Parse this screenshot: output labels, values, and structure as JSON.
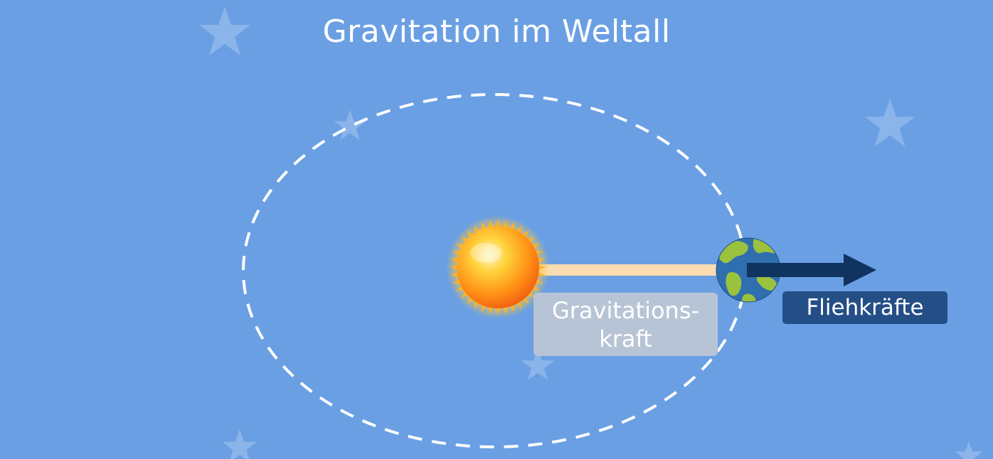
{
  "title": "Gravitation im Weltall",
  "labels": {
    "gravitation_line1": "Gravitations-",
    "gravitation_line2": "kraft",
    "fliehkraefte": "Fliehkräfte"
  },
  "colors": {
    "background": "#6a9fe4",
    "orbit": "#ffffff",
    "gravity_bar": "#fbdcb0",
    "flieh_arrow": "#10345f",
    "gravity_label_bg": "#b7c4d6",
    "flieh_label_bg": "#244e86",
    "sun": "#ff9a1a",
    "earth_ocean": "#2f6fb0",
    "earth_land": "#9bc23c"
  },
  "icons": [
    "sun-icon",
    "earth-icon",
    "star-icon"
  ]
}
